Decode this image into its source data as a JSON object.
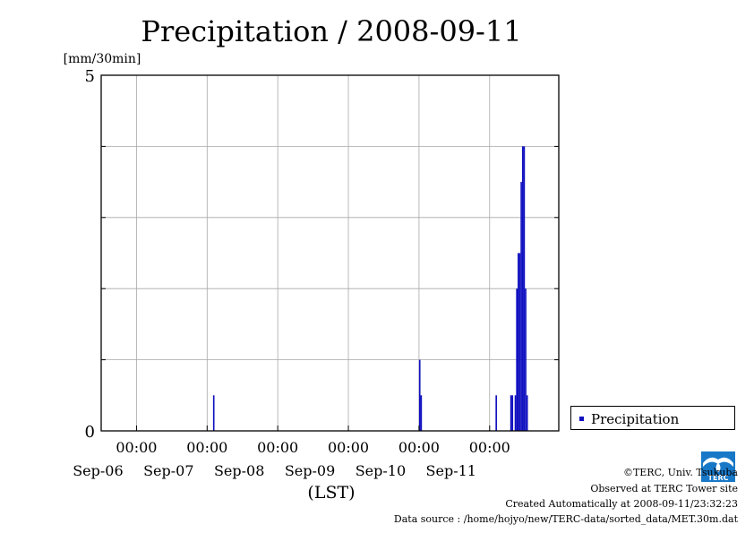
{
  "chart_data": {
    "type": "bar",
    "title": "Precipitation / 2008-09-11",
    "ylabel": "[mm/30min]",
    "xlabel": "(LST)",
    "ylim": [
      0,
      5
    ],
    "yticks": [
      "0",
      "5"
    ],
    "xlim": [
      "2008-09-05T12:00",
      "2008-09-11T23:30"
    ],
    "xticks": [
      {
        "time": "00:00",
        "date": "Sep-06"
      },
      {
        "time": "00:00",
        "date": "Sep-07"
      },
      {
        "time": "00:00",
        "date": "Sep-08"
      },
      {
        "time": "00:00",
        "date": "Sep-09"
      },
      {
        "time": "00:00",
        "date": "Sep-10"
      },
      {
        "time": "00:00",
        "date": "Sep-11"
      }
    ],
    "grid": true,
    "legend_position": "bottom-right outside",
    "series": [
      {
        "name": "Precipitation",
        "color": "#1010c0",
        "points": [
          {
            "t": "2008-09-07T02:30",
            "v": 0.5
          },
          {
            "t": "2008-09-10T00:30",
            "v": 1.0
          },
          {
            "t": "2008-09-10T01:00",
            "v": 0.5
          },
          {
            "t": "2008-09-11T02:30",
            "v": 0.5
          },
          {
            "t": "2008-09-11T07:30",
            "v": 0.5
          },
          {
            "t": "2008-09-11T08:00",
            "v": 0.5
          },
          {
            "t": "2008-09-11T09:00",
            "v": 0.5
          },
          {
            "t": "2008-09-11T09:30",
            "v": 2.0
          },
          {
            "t": "2008-09-11T10:00",
            "v": 2.5
          },
          {
            "t": "2008-09-11T10:30",
            "v": 2.5
          },
          {
            "t": "2008-09-11T11:00",
            "v": 3.5
          },
          {
            "t": "2008-09-11T11:30",
            "v": 4.0
          },
          {
            "t": "2008-09-11T12:00",
            "v": 4.0
          },
          {
            "t": "2008-09-11T12:30",
            "v": 2.0
          },
          {
            "t": "2008-09-11T13:00",
            "v": 0.5
          }
        ]
      }
    ]
  },
  "credits": {
    "org": "©TERC, Univ. Tsukuba",
    "site": "Observed at TERC Tower site",
    "created": "Created Automatically at 2008-09-11/23:32:23",
    "source": "Data source : /home/hojyo/new/TERC-data/sorted_data/MET.30m.dat"
  },
  "logo": {
    "text": "TERC",
    "color": "#1878c8"
  }
}
